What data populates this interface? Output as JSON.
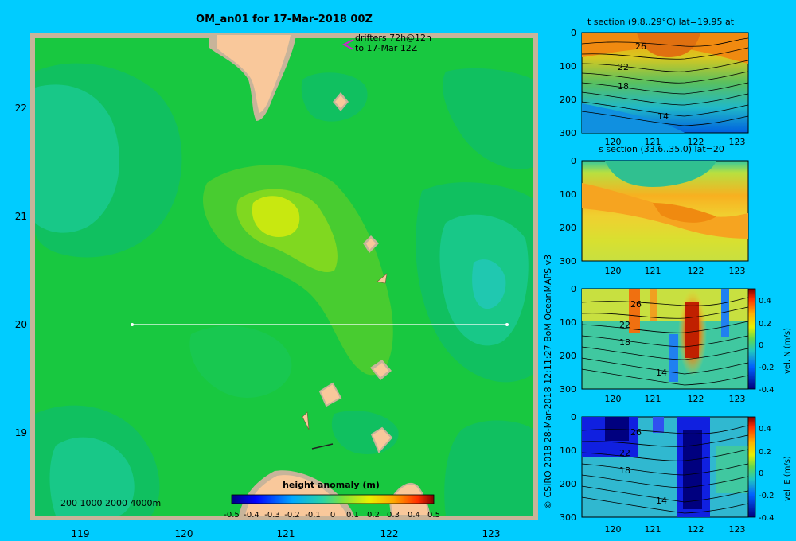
{
  "title": "OM_an01 for 17-Mar-2018 00Z",
  "drifters": {
    "line1": "drifters 72h@12h",
    "line2": "to 17-Mar 12Z"
  },
  "map": {
    "lon_ticks": [
      "119",
      "120",
      "121",
      "122",
      "123"
    ],
    "lat_ticks": [
      "22",
      "21",
      "20",
      "19"
    ],
    "depth_note": "200  1000  2000  4000m",
    "colorbar_title": "height anomaly (m)",
    "colorbar_ticks": [
      "-0.5",
      "-0.4",
      "-0.3",
      "-0.2",
      "-0.1",
      "0",
      "0.1",
      "0.2",
      "0.3",
      "0.4",
      "0.5"
    ]
  },
  "credit": "© CSIRO 2018   28-Mar-2018 12:11:27 BoM OceanMAPS v3",
  "sections": [
    {
      "title": "t section (9.8..29°C) lat=19.95 at",
      "contours": [
        "26",
        "22",
        "18",
        "14"
      ]
    },
    {
      "title": "s section (33.6..35.0) lat=20",
      "contours": []
    },
    {
      "title": "",
      "contours": [
        "26",
        "22",
        "18",
        "14"
      ],
      "cbar_label": "vel. N (m/s)",
      "cbar_ticks": [
        "0.4",
        "0.2",
        "0",
        "-0.2",
        "-0.4"
      ]
    },
    {
      "title": "",
      "contours": [
        "26",
        "22",
        "18",
        "14"
      ],
      "cbar_label": "vel. E (m/s)",
      "cbar_ticks": [
        "0.4",
        "0.2",
        "0",
        "-0.2",
        "-0.4"
      ]
    }
  ],
  "section_axes": {
    "depth_ticks": [
      "0",
      "100",
      "200",
      "300"
    ],
    "lon_ticks": [
      "120",
      "121",
      "122",
      "123"
    ]
  },
  "colors": {
    "background": "#00ccff",
    "land": "#f9c89b",
    "frame": "#c8b49a"
  }
}
